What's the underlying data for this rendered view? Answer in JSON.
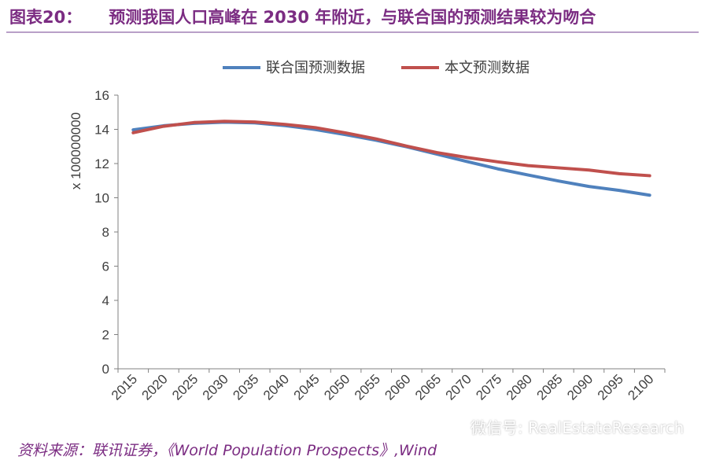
{
  "header": {
    "figure_number": "图表20：",
    "title": "预测我国人口高峰在 2030 年附近，与联合国的预测结果较为吻合"
  },
  "source": {
    "text": "资料来源：联讯证券，《World Population Prospects》,Wind"
  },
  "watermark": {
    "text": "微信号: RealEstateResearch"
  },
  "colors": {
    "title": "#7b2c82",
    "un_series": "#4f81bd",
    "this_paper_series": "#c0504d",
    "axis": "#808080"
  },
  "chart_data": {
    "type": "line",
    "title": "",
    "xlabel": "",
    "ylabel": "x 100000000",
    "ylim": [
      0,
      16
    ],
    "yticks": [
      "0",
      "2",
      "4",
      "6",
      "8",
      "10",
      "12",
      "14",
      "16"
    ],
    "x": [
      "2015",
      "2020",
      "2025",
      "2030",
      "2035",
      "2040",
      "2045",
      "2050",
      "2055",
      "2060",
      "2065",
      "2070",
      "2075",
      "2080",
      "2085",
      "2090",
      "2095",
      "2100"
    ],
    "legend_position": "top",
    "grid": false,
    "series": [
      {
        "name": "联合国预测数据",
        "color": "#4f81bd",
        "values": [
          13.97,
          14.21,
          14.35,
          14.42,
          14.38,
          14.22,
          13.99,
          13.69,
          13.36,
          12.98,
          12.55,
          12.11,
          11.69,
          11.33,
          10.98,
          10.66,
          10.43,
          10.15
        ]
      },
      {
        "name": "本文预测数据",
        "color": "#c0504d",
        "values": [
          13.8,
          14.18,
          14.4,
          14.47,
          14.43,
          14.29,
          14.1,
          13.79,
          13.44,
          13.02,
          12.64,
          12.35,
          12.1,
          11.88,
          11.75,
          11.62,
          11.41,
          11.29
        ]
      }
    ]
  }
}
